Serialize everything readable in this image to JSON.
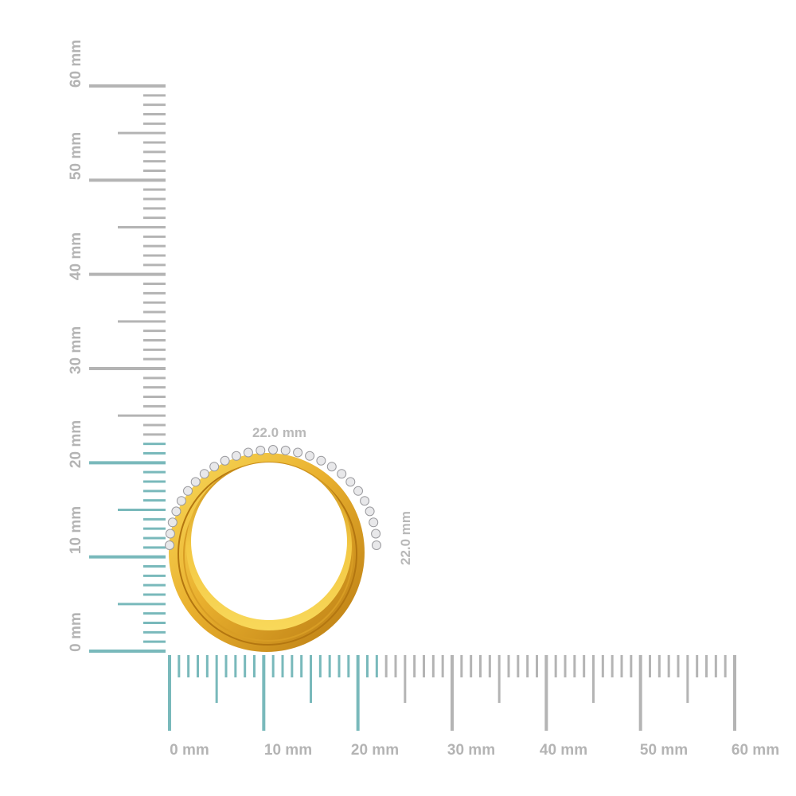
{
  "colors": {
    "background": "#ffffff",
    "ruler_gray": "#b4b4b4",
    "ruler_teal": "#79b9bb",
    "gold_light": "#f7d24a",
    "gold_mid": "#e2a82a",
    "gold_dark": "#a86f0e",
    "diamond": "#e8e8ea"
  },
  "ruler": {
    "unit": "mm",
    "x_labels": [
      "0 mm",
      "10 mm",
      "20 mm",
      "30 mm",
      "40 mm",
      "50 mm",
      "60 mm"
    ],
    "y_labels": [
      "0 mm",
      "10 mm",
      "20 mm",
      "30 mm",
      "40 mm",
      "50 mm",
      "60 mm"
    ],
    "highlight_mm": 22
  },
  "ring": {
    "width_label": "22.0 mm",
    "height_label": "22.0 mm",
    "width_mm": 22.0,
    "height_mm": 22.0
  }
}
